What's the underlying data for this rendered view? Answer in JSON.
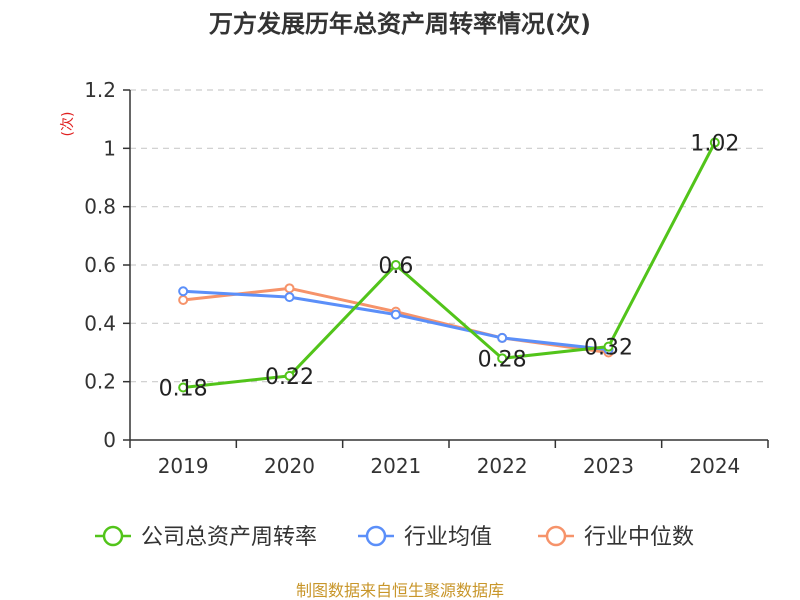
{
  "chart_data": {
    "type": "line",
    "title": "万方发展历年总资产周转率情况(次)",
    "ylabel": "(次)",
    "xlabel": "",
    "categories": [
      "2019",
      "2020",
      "2021",
      "2022",
      "2023",
      "2024"
    ],
    "ylim": [
      0,
      1.2
    ],
    "yticks": [
      "0",
      "0.2",
      "0.4",
      "0.6",
      "0.8",
      "1",
      "1.2"
    ],
    "grid": true,
    "legend_position": "bottom",
    "series": [
      {
        "name": "公司总资产周转率",
        "color": "#52c41a",
        "values": [
          0.18,
          0.22,
          0.6,
          0.28,
          0.32,
          1.02
        ],
        "labels": [
          "0.18",
          "0.22",
          "0.6",
          "0.28",
          "0.32",
          "1.02"
        ]
      },
      {
        "name": "行业均值",
        "color": "#5b8ff9",
        "values": [
          0.51,
          0.49,
          0.43,
          0.35,
          0.31,
          null
        ]
      },
      {
        "name": "行业中位数",
        "color": "#f6936a",
        "values": [
          0.48,
          0.52,
          0.44,
          0.35,
          0.3,
          null
        ]
      }
    ],
    "source": "制图数据来自恒生聚源数据库",
    "title_color": "#333333",
    "ylabel_color": "#e02020",
    "source_color": "#c8962a"
  }
}
